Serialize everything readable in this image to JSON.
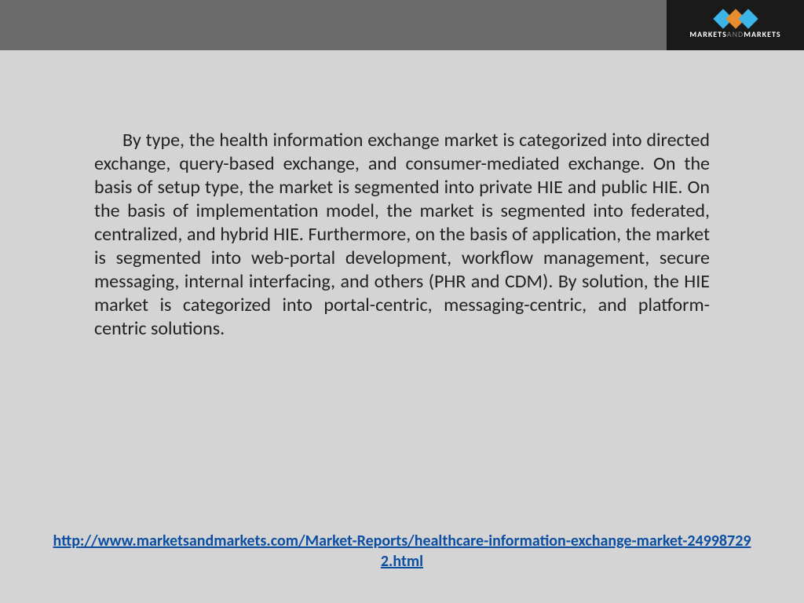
{
  "logo": {
    "text_left": "MARKETS",
    "text_mid": "AND",
    "text_right": "MARKETS",
    "diamond_colors": [
      "#3bb4e8",
      "#e88b2f",
      "#3bb4e8"
    ]
  },
  "body": {
    "paragraph": "By type, the health information exchange market is categorized into directed exchange, query-based exchange, and consumer-mediated exchange. On the basis of setup type, the market is segmented into private HIE and public HIE. On the basis of implementation model, the market is segmented into federated, centralized, and hybrid HIE. Furthermore, on the basis of application, the market is segmented into web-portal development, workflow management, secure messaging, internal interfacing, and others (PHR and CDM). By solution, the HIE market is categorized into portal-centric, messaging-centric, and platform-centric solutions."
  },
  "footer": {
    "url": "http://www.marketsandmarkets.com/Market-Reports/healthcare-information-exchange-market-249987292.html"
  },
  "colors": {
    "page_bg": "#d4d4d4",
    "header_bg": "#6b6b6b",
    "logo_bg": "#1a1a1a",
    "text": "#222222",
    "link": "#0b4ea2"
  }
}
